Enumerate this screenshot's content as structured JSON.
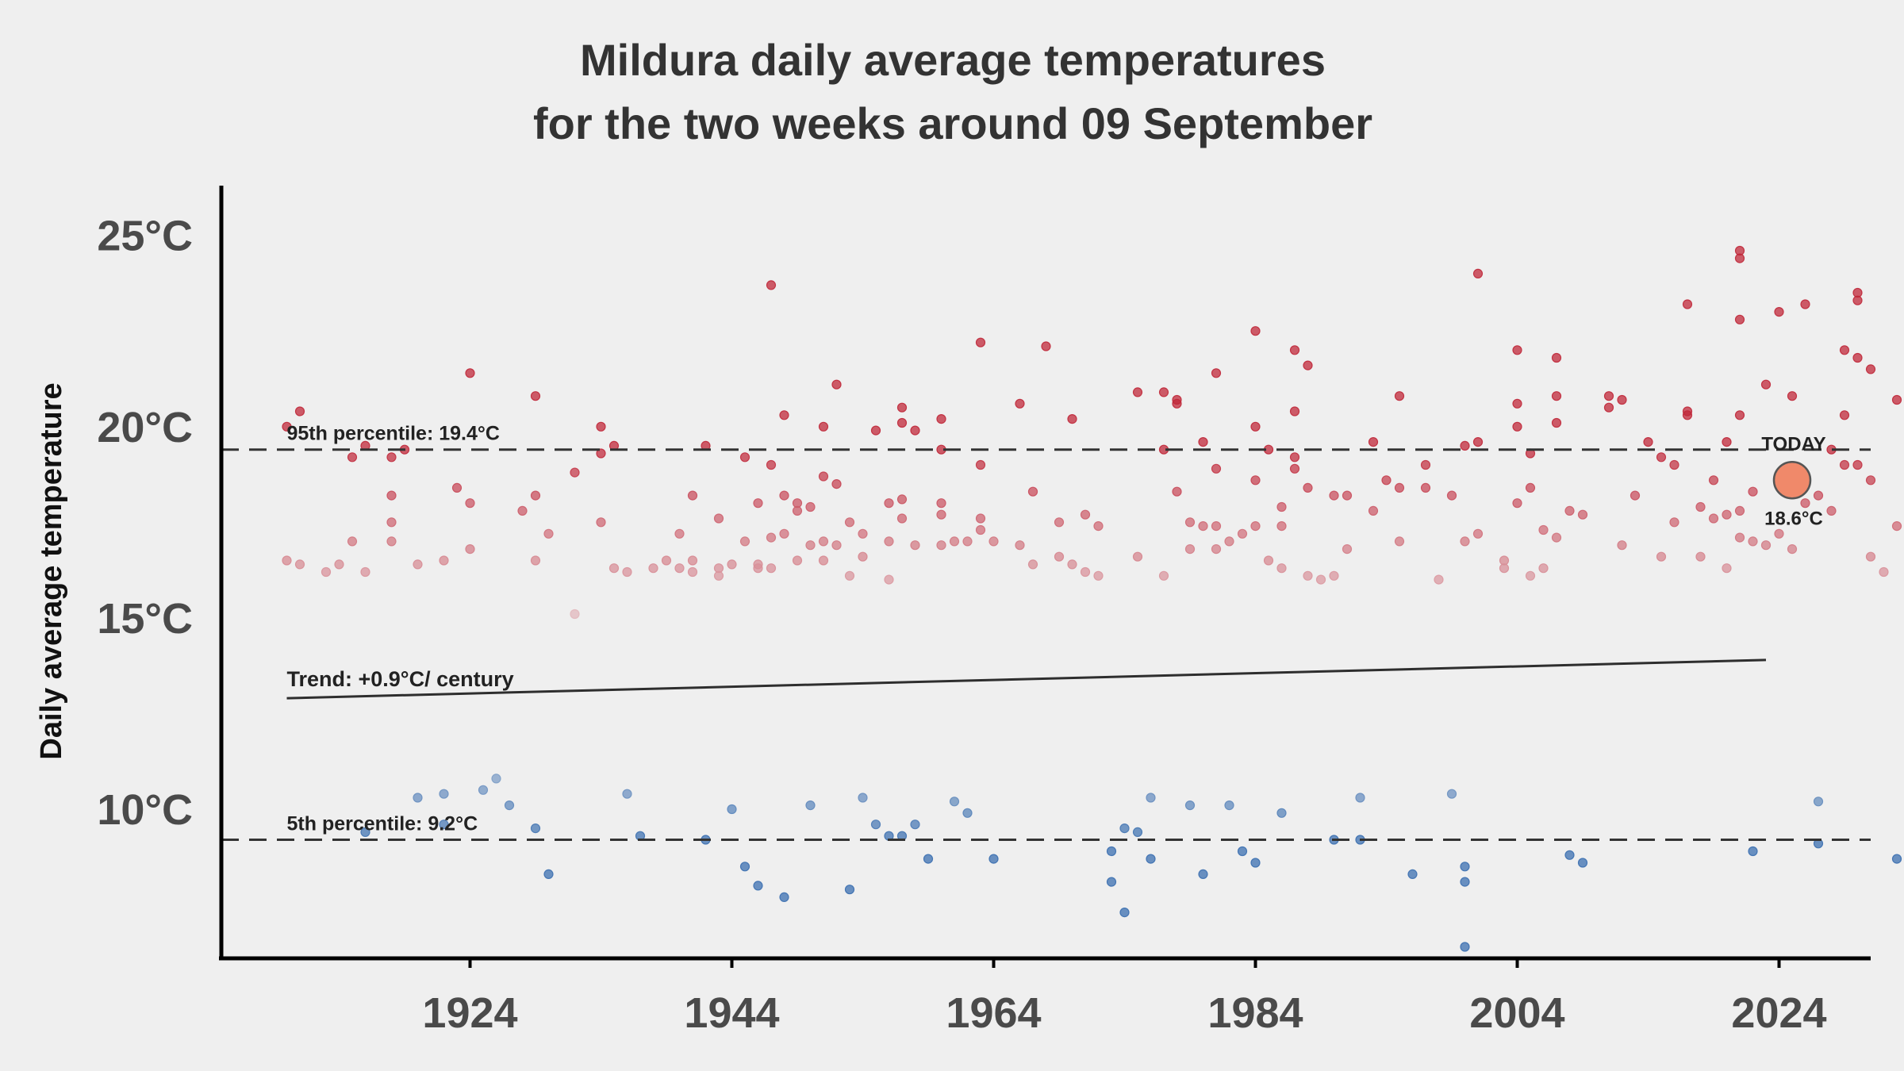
{
  "chart_data": {
    "type": "scatter",
    "title": "Mildura daily average temperatures",
    "subtitle": "for the two weeks around 09 September",
    "xlabel": "",
    "ylabel": "Daily average temperature",
    "xlim": [
      1905,
      2031
    ],
    "ylim": [
      6.1,
      26.3
    ],
    "x_ticks": [
      {
        "value": 1924,
        "label": "1924"
      },
      {
        "value": 1944,
        "label": "1944"
      },
      {
        "value": 1964,
        "label": "1964"
      },
      {
        "value": 1984,
        "label": "1984"
      },
      {
        "value": 2004,
        "label": "2004"
      },
      {
        "value": 2024,
        "label": "2024"
      }
    ],
    "y_ticks": [
      {
        "value": 10,
        "label": "10°C"
      },
      {
        "value": 15,
        "label": "15°C"
      },
      {
        "value": 20,
        "label": "20°C"
      },
      {
        "value": 25,
        "label": "25°C"
      }
    ],
    "grid": false,
    "reference_lines": [
      {
        "value": 19.4,
        "label": "95th percentile: 19.4°C",
        "style": "dashed"
      },
      {
        "value": 9.2,
        "label": "5th percentile: 9.2°C",
        "style": "dashed"
      }
    ],
    "trend": {
      "label": "Trend: +0.9°C/ century",
      "x": [
        1910,
        2023
      ],
      "y": [
        12.9,
        13.9
      ]
    },
    "today": {
      "label": "TODAY",
      "x": 2025,
      "y": 18.6,
      "value_label": "18.6°C",
      "color": "#f0896a"
    },
    "color_scale": {
      "low": "#3b6fb0",
      "mid": "#eeeeee",
      "high": "#c0283a",
      "domain": [
        9.2,
        13.5,
        19.4
      ]
    },
    "points": [
      [
        1910,
        20
      ],
      [
        1910,
        16.5
      ],
      [
        1911,
        20.4
      ],
      [
        1911,
        16.4
      ],
      [
        1913,
        16.2
      ],
      [
        1914,
        16.4
      ],
      [
        1915,
        19.2
      ],
      [
        1915,
        17
      ],
      [
        1916,
        19.5
      ],
      [
        1916,
        16.2
      ],
      [
        1916,
        9.4
      ],
      [
        1918,
        18.2
      ],
      [
        1918,
        17.5
      ],
      [
        1918,
        17
      ],
      [
        1918,
        19.2
      ],
      [
        1919,
        19.4
      ],
      [
        1920,
        16.4
      ],
      [
        1920,
        10.3
      ],
      [
        1922,
        16.5
      ],
      [
        1922,
        10.4
      ],
      [
        1922,
        9.6
      ],
      [
        1923,
        18.4
      ],
      [
        1924,
        21.4
      ],
      [
        1924,
        18
      ],
      [
        1924,
        16.8
      ],
      [
        1925,
        10.5
      ],
      [
        1926,
        10.8
      ],
      [
        1927,
        10.1
      ],
      [
        1928,
        17.8
      ],
      [
        1929,
        20.8
      ],
      [
        1929,
        18.2
      ],
      [
        1929,
        16.5
      ],
      [
        1929,
        9.5
      ],
      [
        1930,
        17.2
      ],
      [
        1930,
        8.3
      ],
      [
        1932,
        18.8
      ],
      [
        1932,
        15.1
      ],
      [
        1934,
        20
      ],
      [
        1934,
        19.3
      ],
      [
        1934,
        17.5
      ],
      [
        1935,
        19.5
      ],
      [
        1935,
        16.3
      ],
      [
        1936,
        16.2
      ],
      [
        1936,
        10.4
      ],
      [
        1937,
        9.3
      ],
      [
        1938,
        16.3
      ],
      [
        1939,
        16.5
      ],
      [
        1940,
        17.2
      ],
      [
        1940,
        16.3
      ],
      [
        1941,
        16.5
      ],
      [
        1941,
        16.2
      ],
      [
        1941,
        18.2
      ],
      [
        1942,
        19.5
      ],
      [
        1942,
        9.2
      ],
      [
        1943,
        17.6
      ],
      [
        1943,
        16.3
      ],
      [
        1943,
        16.1
      ],
      [
        1944,
        16.4
      ],
      [
        1944,
        10
      ],
      [
        1945,
        19.2
      ],
      [
        1945,
        17
      ],
      [
        1945,
        8.5
      ],
      [
        1946,
        18
      ],
      [
        1946,
        16.4
      ],
      [
        1946,
        16.3
      ],
      [
        1946,
        8
      ],
      [
        1947,
        23.7
      ],
      [
        1947,
        19
      ],
      [
        1947,
        17.1
      ],
      [
        1947,
        16.3
      ],
      [
        1948,
        20.3
      ],
      [
        1948,
        18.2
      ],
      [
        1948,
        17.2
      ],
      [
        1948,
        7.7
      ],
      [
        1949,
        18
      ],
      [
        1949,
        16.5
      ],
      [
        1949,
        17.8
      ],
      [
        1950,
        17.9
      ],
      [
        1950,
        16.9
      ],
      [
        1950,
        10.1
      ],
      [
        1951,
        20
      ],
      [
        1951,
        17
      ],
      [
        1951,
        18.7
      ],
      [
        1951,
        16.5
      ],
      [
        1952,
        21.1
      ],
      [
        1952,
        18.5
      ],
      [
        1952,
        16.9
      ],
      [
        1953,
        17.5
      ],
      [
        1953,
        16.1
      ],
      [
        1953,
        7.9
      ],
      [
        1954,
        17.2
      ],
      [
        1954,
        16.6
      ],
      [
        1954,
        10.3
      ],
      [
        1955,
        19.9
      ],
      [
        1955,
        9.6
      ],
      [
        1956,
        18
      ],
      [
        1956,
        17
      ],
      [
        1956,
        16
      ],
      [
        1956,
        9.3
      ],
      [
        1957,
        20.5
      ],
      [
        1957,
        20.1
      ],
      [
        1957,
        18.1
      ],
      [
        1957,
        17.6
      ],
      [
        1957,
        9.3
      ],
      [
        1958,
        19.9
      ],
      [
        1958,
        16.9
      ],
      [
        1958,
        9.6
      ],
      [
        1959,
        8.7
      ],
      [
        1960,
        19.4
      ],
      [
        1960,
        18
      ],
      [
        1960,
        17.7
      ],
      [
        1960,
        16.9
      ],
      [
        1960,
        20.2
      ],
      [
        1961,
        17
      ],
      [
        1961,
        10.2
      ],
      [
        1962,
        17
      ],
      [
        1962,
        9.9
      ],
      [
        1963,
        22.2
      ],
      [
        1963,
        19
      ],
      [
        1963,
        17.6
      ],
      [
        1963,
        17.3
      ],
      [
        1964,
        17
      ],
      [
        1964,
        8.7
      ],
      [
        1966,
        20.6
      ],
      [
        1966,
        16.9
      ],
      [
        1967,
        18.3
      ],
      [
        1967,
        16.4
      ],
      [
        1968,
        22.1
      ],
      [
        1969,
        17.5
      ],
      [
        1969,
        16.6
      ],
      [
        1970,
        20.2
      ],
      [
        1970,
        16.4
      ],
      [
        1971,
        17.7
      ],
      [
        1971,
        16.2
      ],
      [
        1972,
        17.4
      ],
      [
        1972,
        16.1
      ],
      [
        1973,
        8.9
      ],
      [
        1973,
        8.1
      ],
      [
        1974,
        9.5
      ],
      [
        1974,
        7.3
      ],
      [
        1975,
        20.9
      ],
      [
        1975,
        16.6
      ],
      [
        1975,
        9.4
      ],
      [
        1976,
        10.3
      ],
      [
        1976,
        8.7
      ],
      [
        1977,
        20.9
      ],
      [
        1977,
        19.4
      ],
      [
        1977,
        16.1
      ],
      [
        1978,
        20.6
      ],
      [
        1978,
        20.7
      ],
      [
        1978,
        18.3
      ],
      [
        1979,
        17.5
      ],
      [
        1979,
        16.8
      ],
      [
        1979,
        10.1
      ],
      [
        1980,
        19.6
      ],
      [
        1980,
        17.4
      ],
      [
        1980,
        8.3
      ],
      [
        1981,
        21.4
      ],
      [
        1981,
        17.4
      ],
      [
        1981,
        18.9
      ],
      [
        1981,
        16.8
      ],
      [
        1982,
        17
      ],
      [
        1982,
        10.1
      ],
      [
        1983,
        17.2
      ],
      [
        1983,
        8.9
      ],
      [
        1984,
        8.6
      ],
      [
        1984,
        22.5
      ],
      [
        1984,
        20
      ],
      [
        1984,
        18.6
      ],
      [
        1984,
        17.4
      ],
      [
        1985,
        19.4
      ],
      [
        1985,
        16.5
      ],
      [
        1986,
        17.9
      ],
      [
        1986,
        16.3
      ],
      [
        1986,
        17.4
      ],
      [
        1986,
        9.9
      ],
      [
        1987,
        22
      ],
      [
        1987,
        20.4
      ],
      [
        1987,
        19.2
      ],
      [
        1987,
        18.9
      ],
      [
        1988,
        21.6
      ],
      [
        1988,
        18.4
      ],
      [
        1988,
        16.1
      ],
      [
        1989,
        16
      ],
      [
        1990,
        18.2
      ],
      [
        1990,
        16.1
      ],
      [
        1990,
        9.2
      ],
      [
        1991,
        18.2
      ],
      [
        1991,
        16.8
      ],
      [
        1992,
        10.3
      ],
      [
        1992,
        9.2
      ],
      [
        1993,
        19.6
      ],
      [
        1993,
        17.8
      ],
      [
        1994,
        18.6
      ],
      [
        1995,
        20.8
      ],
      [
        1995,
        18.4
      ],
      [
        1995,
        17
      ],
      [
        1996,
        8.3
      ],
      [
        1997,
        19
      ],
      [
        1997,
        18.4
      ],
      [
        1998,
        16
      ],
      [
        1999,
        18.2
      ],
      [
        1999,
        10.4
      ],
      [
        2000,
        19.5
      ],
      [
        2000,
        17
      ],
      [
        2000,
        8.1
      ],
      [
        2000,
        8.5
      ],
      [
        2000,
        6.4
      ],
      [
        2001,
        24
      ],
      [
        2001,
        19.6
      ],
      [
        2001,
        17.2
      ],
      [
        2003,
        16.5
      ],
      [
        2003,
        16.3
      ],
      [
        2004,
        22
      ],
      [
        2004,
        20.6
      ],
      [
        2004,
        20
      ],
      [
        2004,
        18
      ],
      [
        2005,
        19.3
      ],
      [
        2005,
        18.4
      ],
      [
        2005,
        16.1
      ],
      [
        2006,
        17.3
      ],
      [
        2006,
        16.3
      ],
      [
        2007,
        21.8
      ],
      [
        2007,
        20.1
      ],
      [
        2007,
        20.8
      ],
      [
        2007,
        17.1
      ],
      [
        2008,
        17.8
      ],
      [
        2008,
        8.8
      ],
      [
        2009,
        17.7
      ],
      [
        2009,
        8.6
      ],
      [
        2011,
        20.8
      ],
      [
        2011,
        20.5
      ],
      [
        2012,
        20.7
      ],
      [
        2012,
        16.9
      ],
      [
        2013,
        18.2
      ],
      [
        2014,
        19.6
      ],
      [
        2015,
        16.6
      ],
      [
        2015,
        19.2
      ],
      [
        2016,
        17.5
      ],
      [
        2016,
        19
      ],
      [
        2017,
        23.2
      ],
      [
        2017,
        20.3
      ],
      [
        2017,
        20.4
      ],
      [
        2018,
        17.9
      ],
      [
        2018,
        16.6
      ],
      [
        2019,
        18.6
      ],
      [
        2019,
        17.6
      ],
      [
        2020,
        17.7
      ],
      [
        2020,
        16.3
      ],
      [
        2020,
        19.6
      ],
      [
        2021,
        20.3
      ],
      [
        2021,
        24.6
      ],
      [
        2021,
        24.4
      ],
      [
        2021,
        22.8
      ],
      [
        2021,
        17.8
      ],
      [
        2021,
        17.1
      ],
      [
        2022,
        18.3
      ],
      [
        2022,
        17
      ],
      [
        2022,
        8.9
      ],
      [
        2023,
        21.1
      ],
      [
        2023,
        16.9
      ],
      [
        2024,
        23
      ],
      [
        2024,
        17.2
      ],
      [
        2025,
        20.8
      ],
      [
        2025,
        16.8
      ],
      [
        2026,
        23.2
      ],
      [
        2026,
        18
      ],
      [
        2027,
        18.2
      ],
      [
        2027,
        10.2
      ],
      [
        2027,
        9.1
      ],
      [
        2028,
        19.4
      ],
      [
        2028,
        17.8
      ],
      [
        2029,
        22
      ],
      [
        2029,
        20.3
      ],
      [
        2029,
        19
      ],
      [
        2030,
        23.5
      ],
      [
        2030,
        23.3
      ],
      [
        2030,
        21.8
      ],
      [
        2030,
        19
      ],
      [
        2031,
        21.5
      ],
      [
        2031,
        18.6
      ],
      [
        2031,
        16.6
      ],
      [
        2032,
        16.2
      ],
      [
        2033,
        20.7
      ],
      [
        2033,
        17.4
      ],
      [
        2033,
        8.7
      ]
    ]
  }
}
